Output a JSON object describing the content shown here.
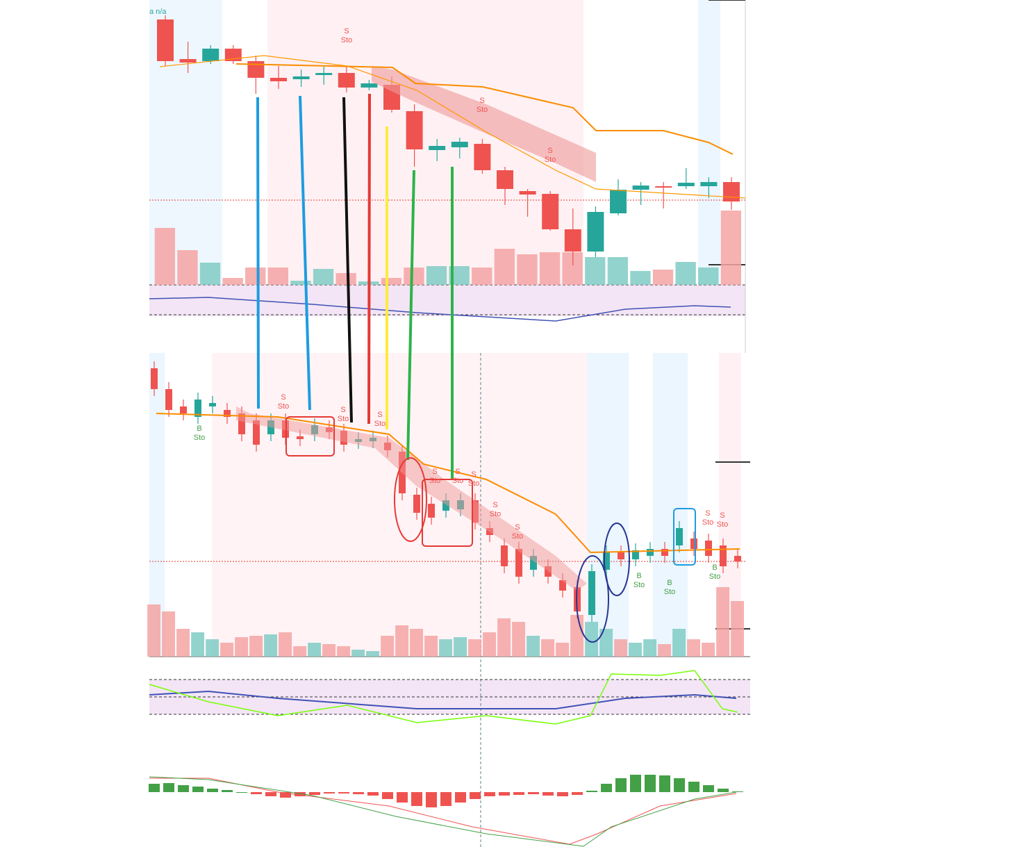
{
  "header": {
    "symbol": "a n/a"
  },
  "chart_data": [
    {
      "type": "candlestick",
      "ylim": [
        0,
        410
      ],
      "up_color": "#26a69a",
      "down_color": "#ef5350",
      "candles": [
        {
          "o": 382,
          "h": 388,
          "l": 315,
          "c": 322
        },
        {
          "o": 325,
          "h": 350,
          "l": 305,
          "c": 320
        },
        {
          "o": 322,
          "h": 345,
          "l": 318,
          "c": 340
        },
        {
          "o": 340,
          "h": 345,
          "l": 318,
          "c": 322
        },
        {
          "o": 322,
          "h": 330,
          "l": 275,
          "c": 298
        },
        {
          "o": 298,
          "h": 315,
          "l": 282,
          "c": 293
        },
        {
          "o": 296,
          "h": 310,
          "l": 285,
          "c": 300
        },
        {
          "o": 302,
          "h": 315,
          "l": 288,
          "c": 305
        },
        {
          "o": 305,
          "h": 315,
          "l": 277,
          "c": 284
        },
        {
          "o": 284,
          "h": 295,
          "l": 280,
          "c": 290
        },
        {
          "o": 288,
          "h": 300,
          "l": 248,
          "c": 252
        },
        {
          "o": 250,
          "h": 260,
          "l": 170,
          "c": 195
        },
        {
          "o": 194,
          "h": 210,
          "l": 178,
          "c": 200
        },
        {
          "o": 198,
          "h": 212,
          "l": 182,
          "c": 206
        },
        {
          "o": 203,
          "h": 210,
          "l": 160,
          "c": 165
        },
        {
          "o": 165,
          "h": 170,
          "l": 115,
          "c": 138
        },
        {
          "o": 135,
          "h": 138,
          "l": 98,
          "c": 130
        },
        {
          "o": 131,
          "h": 135,
          "l": 78,
          "c": 80
        },
        {
          "o": 80,
          "h": 110,
          "l": 28,
          "c": 48
        },
        {
          "o": 48,
          "h": 113,
          "l": 40,
          "c": 105
        },
        {
          "o": 103,
          "h": 152,
          "l": 100,
          "c": 137
        },
        {
          "o": 137,
          "h": 148,
          "l": 115,
          "c": 143
        },
        {
          "o": 142,
          "h": 148,
          "l": 110,
          "c": 140
        },
        {
          "o": 142,
          "h": 168,
          "l": 138,
          "c": 147
        },
        {
          "o": 142,
          "h": 155,
          "l": 125,
          "c": 148
        },
        {
          "o": 148,
          "h": 155,
          "l": 108,
          "c": 120
        }
      ],
      "volume": [
        82,
        50,
        32,
        10,
        25,
        25,
        6,
        23,
        17,
        5,
        10,
        25,
        27,
        27,
        25,
        52,
        44,
        47,
        47,
        40,
        40,
        20,
        22,
        33,
        25,
        107
      ]
    },
    {
      "type": "candlestick",
      "ylim": [
        0,
        435
      ],
      "up_color": "#26a69a",
      "down_color": "#ef5350",
      "candles": [
        {
          "o": 415,
          "h": 425,
          "l": 375,
          "c": 385
        },
        {
          "o": 385,
          "h": 395,
          "l": 345,
          "c": 355
        },
        {
          "o": 360,
          "h": 370,
          "l": 340,
          "c": 350
        },
        {
          "o": 345,
          "h": 380,
          "l": 335,
          "c": 370
        },
        {
          "o": 360,
          "h": 375,
          "l": 350,
          "c": 365
        },
        {
          "o": 355,
          "h": 365,
          "l": 335,
          "c": 345
        },
        {
          "o": 350,
          "h": 360,
          "l": 310,
          "c": 320
        },
        {
          "o": 340,
          "h": 350,
          "l": 295,
          "c": 305
        },
        {
          "o": 320,
          "h": 350,
          "l": 310,
          "c": 340
        },
        {
          "o": 340,
          "h": 350,
          "l": 305,
          "c": 315
        },
        {
          "o": 317,
          "h": 327,
          "l": 303,
          "c": 313
        },
        {
          "o": 320,
          "h": 343,
          "l": 310,
          "c": 333
        },
        {
          "o": 330,
          "h": 340,
          "l": 313,
          "c": 323
        },
        {
          "o": 325,
          "h": 335,
          "l": 295,
          "c": 305
        },
        {
          "o": 309,
          "h": 323,
          "l": 299,
          "c": 313
        },
        {
          "o": 310,
          "h": 325,
          "l": 300,
          "c": 315
        },
        {
          "o": 308,
          "h": 318,
          "l": 287,
          "c": 297
        },
        {
          "o": 295,
          "h": 305,
          "l": 225,
          "c": 235
        },
        {
          "o": 233,
          "h": 243,
          "l": 197,
          "c": 207
        },
        {
          "o": 220,
          "h": 230,
          "l": 190,
          "c": 200
        },
        {
          "o": 210,
          "h": 235,
          "l": 200,
          "c": 225
        },
        {
          "o": 212,
          "h": 235,
          "l": 202,
          "c": 225
        },
        {
          "o": 225,
          "h": 235,
          "l": 183,
          "c": 193
        },
        {
          "o": 185,
          "h": 195,
          "l": 165,
          "c": 175
        },
        {
          "o": 160,
          "h": 170,
          "l": 120,
          "c": 130
        },
        {
          "o": 155,
          "h": 165,
          "l": 105,
          "c": 115
        },
        {
          "o": 125,
          "h": 155,
          "l": 115,
          "c": 145
        },
        {
          "o": 130,
          "h": 140,
          "l": 105,
          "c": 115
        },
        {
          "o": 110,
          "h": 120,
          "l": 85,
          "c": 95
        },
        {
          "o": 100,
          "h": 110,
          "l": 55,
          "c": 65
        },
        {
          "o": 60,
          "h": 133,
          "l": 50,
          "c": 123
        },
        {
          "o": 125,
          "h": 160,
          "l": 115,
          "c": 150
        },
        {
          "o": 150,
          "h": 160,
          "l": 130,
          "c": 140
        },
        {
          "o": 140,
          "h": 163,
          "l": 130,
          "c": 153
        },
        {
          "o": 145,
          "h": 165,
          "l": 135,
          "c": 155
        },
        {
          "o": 155,
          "h": 165,
          "l": 135,
          "c": 145
        },
        {
          "o": 160,
          "h": 195,
          "l": 150,
          "c": 185
        },
        {
          "o": 170,
          "h": 180,
          "l": 145,
          "c": 155
        },
        {
          "o": 167,
          "h": 177,
          "l": 135,
          "c": 145
        },
        {
          "o": 160,
          "h": 170,
          "l": 120,
          "c": 130
        },
        {
          "o": 145,
          "h": 155,
          "l": 127,
          "c": 137
        }
      ],
      "volume": [
        75,
        65,
        40,
        35,
        25,
        20,
        28,
        30,
        32,
        35,
        15,
        20,
        18,
        15,
        10,
        8,
        30,
        45,
        40,
        30,
        25,
        28,
        25,
        35,
        55,
        50,
        30,
        25,
        20,
        60,
        50,
        40,
        25,
        20,
        25,
        18,
        40,
        25,
        20,
        100,
        80
      ]
    },
    {
      "type": "bar",
      "ylim": [
        -79,
        40
      ],
      "up_color": "#43a047",
      "down_color": "#ef5350",
      "values": [
        12,
        13,
        10,
        8,
        5,
        3,
        0,
        -3,
        -6,
        -8,
        -6,
        -4,
        -2,
        -2,
        -3,
        -5,
        -10,
        -15,
        -20,
        -22,
        -20,
        -15,
        -10,
        -6,
        -5,
        -4,
        -3,
        -5,
        -6,
        -4,
        2,
        12,
        20,
        25,
        25,
        24,
        20,
        15,
        10,
        5,
        1
      ]
    }
  ],
  "signals": [
    {
      "side": "S",
      "label": "Sto"
    },
    {
      "side": "S",
      "label": "Sto"
    },
    {
      "side": "S",
      "label": "Sto"
    },
    {
      "side": "S",
      "label": "Sto"
    },
    {
      "side": "S",
      "label": "Sto"
    },
    {
      "side": "S",
      "label": "Sto"
    },
    {
      "side": "S",
      "label": "Sto"
    },
    {
      "side": "S",
      "label": "Sto"
    },
    {
      "side": "S",
      "label": "Sto"
    },
    {
      "side": "S",
      "label": "Sto"
    },
    {
      "side": "S",
      "label": "Sto"
    },
    {
      "side": "S",
      "label": "Sto"
    },
    {
      "side": "S",
      "label": "Sto"
    },
    {
      "side": "B",
      "label": "Sto"
    },
    {
      "side": "B",
      "label": "Sto"
    },
    {
      "side": "B",
      "label": "Sto"
    },
    {
      "side": "B",
      "label": "Sto"
    }
  ]
}
